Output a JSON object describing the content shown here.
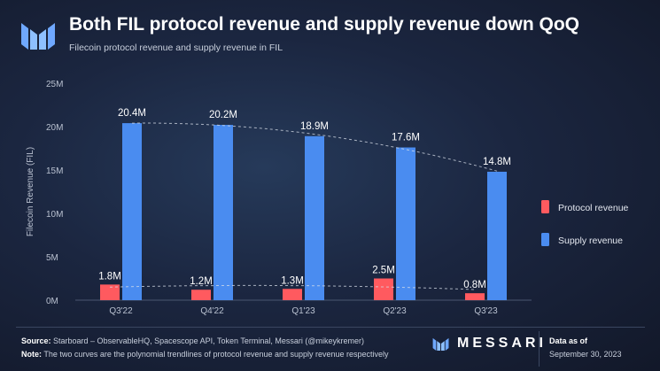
{
  "header": {
    "title": "Both FIL protocol revenue and supply revenue down QoQ",
    "subtitle": "Filecoin protocol revenue and supply revenue in FIL"
  },
  "chart_data": {
    "type": "bar",
    "ylabel": "Filecoin Revenue (FIL)",
    "xlabel": "",
    "ylim": [
      0,
      25000000
    ],
    "yticks": [
      0,
      5000000,
      10000000,
      15000000,
      20000000,
      25000000
    ],
    "ytick_labels": [
      "0M",
      "5M",
      "10M",
      "15M",
      "20M",
      "25M"
    ],
    "categories": [
      "Q3'22",
      "Q4'22",
      "Q1'23",
      "Q2'23",
      "Q3'23"
    ],
    "series": [
      {
        "name": "Protocol revenue",
        "color": "#ff5a5f",
        "values": [
          1800000,
          1200000,
          1300000,
          2500000,
          800000
        ],
        "labels": [
          "1.8M",
          "1.2M",
          "1.3M",
          "2.5M",
          "0.8M"
        ]
      },
      {
        "name": "Supply revenue",
        "color": "#4a8cf0",
        "values": [
          20400000,
          20200000,
          18900000,
          17600000,
          14800000
        ],
        "labels": [
          "20.4M",
          "20.2M",
          "18.9M",
          "17.6M",
          "14.8M"
        ]
      }
    ],
    "trendlines": "polynomial, dashed",
    "legend_position": "right"
  },
  "footer": {
    "source_label": "Source:",
    "source_text": "Starboard – ObservableHQ, Spacescope API, Token Terminal, Messari (@mikeykremer)",
    "note_label": "Note:",
    "note_text": "The two curves are the polynomial trendlines of protocol revenue and supply revenue respectively",
    "brand": "MESSARI",
    "data_as_of_label": "Data as of",
    "data_as_of_date": "September 30, 2023"
  }
}
